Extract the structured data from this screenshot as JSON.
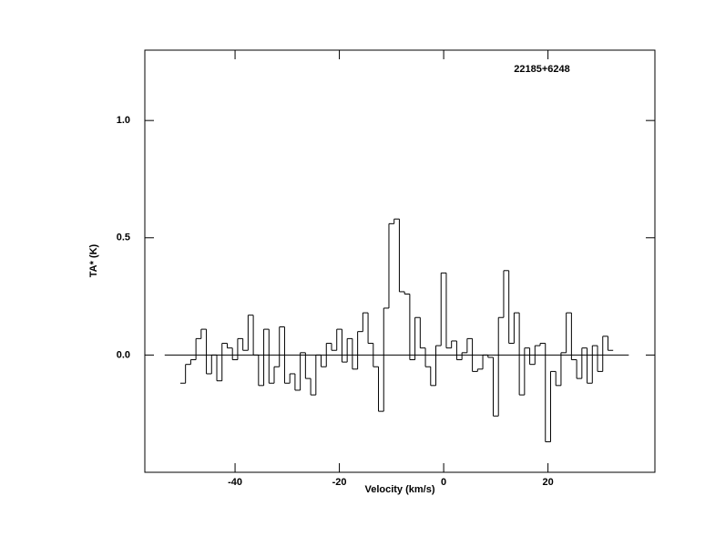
{
  "chart_data": {
    "type": "step",
    "title": "22185+6248",
    "xlabel": "Velocity (km/s)",
    "ylabel": "TA* (K)",
    "x": [
      -50,
      -49,
      -48,
      -47,
      -46,
      -45,
      -44,
      -43,
      -42,
      -41,
      -40,
      -39,
      -38,
      -37,
      -36,
      -35,
      -34,
      -33,
      -32,
      -31,
      -30,
      -29,
      -28,
      -27,
      -26,
      -25,
      -24,
      -23,
      -22,
      -21,
      -20,
      -19,
      -18,
      -17,
      -16,
      -15,
      -14,
      -13,
      -12,
      -11,
      -10,
      -9,
      -8,
      -7,
      -6,
      -5,
      -4,
      -3,
      -2,
      -1,
      0,
      1,
      2,
      3,
      4,
      5,
      6,
      7,
      8,
      9,
      10,
      11,
      12,
      13,
      14,
      15,
      16,
      17,
      18,
      19,
      20,
      21,
      22,
      23,
      24,
      25,
      26,
      27,
      28,
      29,
      30,
      31,
      32
    ],
    "values": [
      -0.12,
      -0.04,
      -0.02,
      0.07,
      0.11,
      -0.08,
      0.0,
      -0.11,
      0.05,
      0.03,
      -0.02,
      0.07,
      0.02,
      0.17,
      0.0,
      -0.13,
      0.11,
      -0.12,
      -0.05,
      0.12,
      -0.12,
      -0.08,
      -0.15,
      0.01,
      -0.1,
      -0.17,
      0.0,
      -0.05,
      0.05,
      0.02,
      0.11,
      -0.03,
      0.07,
      -0.06,
      0.1,
      0.18,
      0.05,
      -0.05,
      -0.24,
      0.2,
      0.56,
      0.58,
      0.27,
      0.26,
      -0.02,
      0.16,
      0.03,
      -0.05,
      -0.13,
      0.04,
      0.35,
      0.03,
      0.06,
      -0.02,
      0.01,
      0.07,
      -0.07,
      -0.06,
      0.0,
      -0.01,
      -0.26,
      0.16,
      0.36,
      0.05,
      0.18,
      -0.17,
      0.03,
      -0.04,
      0.04,
      0.05,
      -0.37,
      -0.07,
      -0.13,
      0.01,
      0.18,
      -0.02,
      -0.1,
      0.03,
      -0.12,
      0.04,
      -0.07,
      0.08,
      0.02
    ],
    "color": "#000000",
    "xlim": [
      -57.3,
      40.5
    ],
    "ylim": [
      -0.5,
      1.3
    ],
    "xticks": [
      -40,
      -20,
      0,
      20
    ],
    "yticks": [
      {
        "value": 0,
        "label": "0.0"
      },
      0.5,
      {
        "value": 1,
        "label": "1.0"
      }
    ]
  }
}
